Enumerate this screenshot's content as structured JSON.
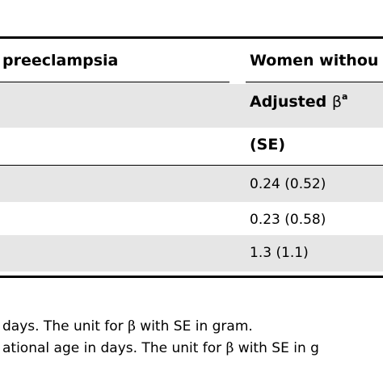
{
  "table": {
    "header": {
      "group_left": "preeclampsia",
      "group_right": "Women withou",
      "adjusted_label": "Adjusted ",
      "beta_symbol": "β",
      "beta_sup": "a",
      "se_label": "(SE)"
    },
    "rows": [
      {
        "value": "0.24 (0.52)"
      },
      {
        "value": "0.23 (0.58)"
      },
      {
        "value": "1.3 (1.1)"
      }
    ]
  },
  "footnotes": {
    "line1_prefix": "days. The unit for ",
    "line1_beta": "β",
    "line1_suffix": " with SE in gram.",
    "line2_prefix": "ational age in days. The unit for ",
    "line2_beta": "β",
    "line2_suffix": " with SE in g"
  }
}
